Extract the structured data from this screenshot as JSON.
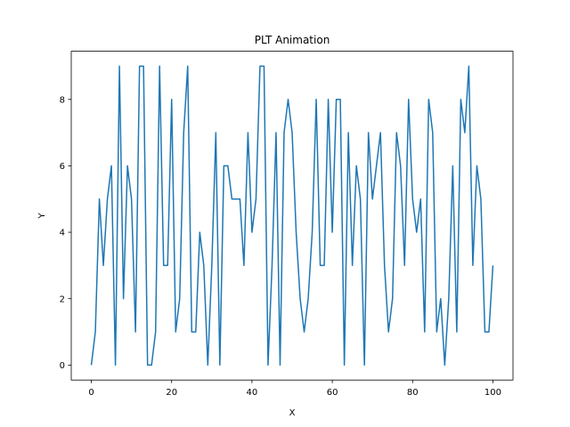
{
  "chart_data": {
    "type": "line",
    "title": "PLT Animation",
    "xlabel": "X",
    "ylabel": "Y",
    "xlim": [
      -5,
      105
    ],
    "ylim": [
      -0.45,
      9.45
    ],
    "xticks": [
      0,
      20,
      40,
      60,
      80,
      100
    ],
    "yticks": [
      0,
      2,
      4,
      6,
      8
    ],
    "grid": false,
    "series": [
      {
        "color": "#1f77b4",
        "x": [
          0,
          1,
          2,
          3,
          4,
          5,
          6,
          7,
          8,
          9,
          10,
          11,
          12,
          13,
          14,
          15,
          16,
          17,
          18,
          19,
          20,
          21,
          22,
          23,
          24,
          25,
          26,
          27,
          28,
          29,
          30,
          31,
          32,
          33,
          34,
          35,
          36,
          37,
          38,
          39,
          40,
          41,
          42,
          43,
          44,
          45,
          46,
          47,
          48,
          49,
          50,
          51,
          52,
          53,
          54,
          55,
          56,
          57,
          58,
          59,
          60,
          61,
          62,
          63,
          64,
          65,
          66,
          67,
          68,
          69,
          70,
          71,
          72,
          73,
          74,
          75,
          76,
          77,
          78,
          79,
          80,
          81,
          82,
          83,
          84,
          85,
          86,
          87,
          88,
          89,
          90,
          91,
          92,
          93,
          94,
          95,
          96,
          97,
          98,
          99,
          100
        ],
        "y": [
          0,
          1,
          5,
          3,
          5,
          6,
          0,
          9,
          2,
          6,
          5,
          1,
          9,
          9,
          0,
          0,
          1,
          9,
          3,
          3,
          8,
          1,
          2,
          7,
          9,
          1,
          1,
          4,
          3,
          0,
          3,
          7,
          0,
          6,
          6,
          5,
          5,
          5,
          3,
          7,
          4,
          5,
          9,
          9,
          0,
          3,
          7,
          0,
          7,
          8,
          7,
          4,
          2,
          1,
          2,
          4,
          8,
          3,
          3,
          8,
          4,
          8,
          8,
          0,
          7,
          3,
          6,
          5,
          0,
          7,
          5,
          6,
          7,
          3,
          1,
          2,
          7,
          6,
          3,
          8,
          5,
          4,
          5,
          1,
          8,
          7,
          1,
          2,
          0,
          2,
          6,
          1,
          8,
          7,
          9,
          3,
          6,
          5,
          1,
          1,
          3
        ]
      }
    ]
  }
}
